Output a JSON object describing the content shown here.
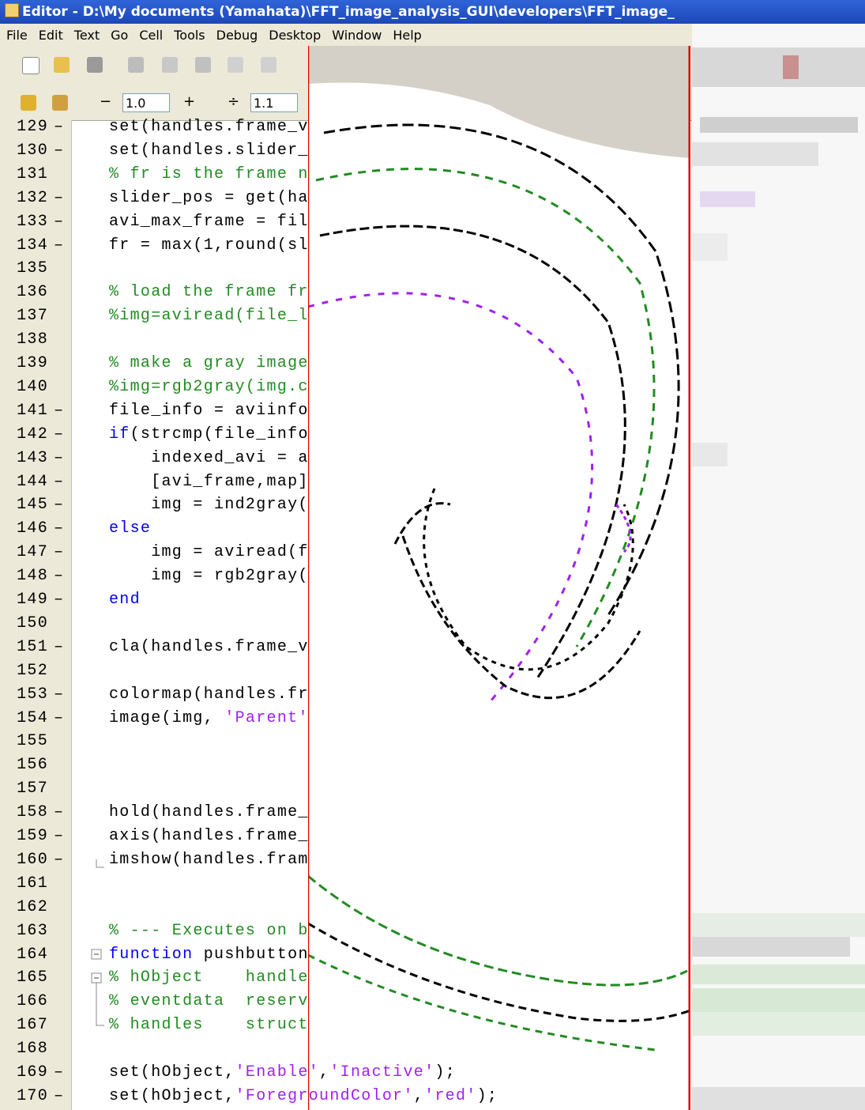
{
  "window": {
    "title": "Editor - D:\\My documents (Yamahata)\\FFT_image_analysis_GUI\\developers\\FFT_image_"
  },
  "menu": [
    "File",
    "Edit",
    "Text",
    "Go",
    "Cell",
    "Tools",
    "Debug",
    "Desktop",
    "Window",
    "Help"
  ],
  "toolbar": {
    "minus": "−",
    "zoom_value": "1.0",
    "plus": "+",
    "divide": "÷",
    "factor_value": "1.1"
  },
  "code": {
    "lines": [
      {
        "number": "129",
        "marker": "–",
        "segments": [
          {
            "text": "set(handles.frame_v",
            "color": "#000000"
          }
        ]
      },
      {
        "number": "130",
        "marker": "–",
        "segments": [
          {
            "text": "set(handles.slider_",
            "color": "#000000"
          }
        ]
      },
      {
        "number": "131",
        "segments": [
          {
            "text": "% fr is the frame n",
            "color": "#228b22"
          }
        ]
      },
      {
        "number": "132",
        "marker": "–",
        "segments": [
          {
            "text": "slider_pos = get(ha",
            "color": "#000000"
          }
        ]
      },
      {
        "number": "133",
        "marker": "–",
        "segments": [
          {
            "text": "avi_max_frame = fil",
            "color": "#000000"
          }
        ]
      },
      {
        "number": "134",
        "marker": "–",
        "segments": [
          {
            "text": "fr = max(1,round(sl",
            "color": "#000000"
          }
        ]
      },
      {
        "number": "135"
      },
      {
        "number": "136",
        "segments": [
          {
            "text": "% load the frame fr",
            "color": "#228b22"
          }
        ]
      },
      {
        "number": "137",
        "segments": [
          {
            "text": "%img=aviread(file_l",
            "color": "#228b22"
          }
        ]
      },
      {
        "number": "138"
      },
      {
        "number": "139",
        "segments": [
          {
            "text": "% make a gray image",
            "color": "#228b22"
          }
        ]
      },
      {
        "number": "140",
        "segments": [
          {
            "text": "%img=rgb2gray(img.c",
            "color": "#228b22"
          }
        ]
      },
      {
        "number": "141",
        "marker": "–",
        "segments": [
          {
            "text": "file_info = aviinfo",
            "color": "#000000"
          }
        ]
      },
      {
        "number": "142",
        "marker": "–",
        "segments": [
          {
            "text": "if",
            "color": "#0000ff"
          },
          {
            "text": "(strcmp(file_info",
            "color": "#000000"
          }
        ]
      },
      {
        "number": "143",
        "marker": "–",
        "segments": [
          {
            "text": "    indexed_avi = a",
            "color": "#000000"
          }
        ]
      },
      {
        "number": "144",
        "marker": "–",
        "segments": [
          {
            "text": "    [avi_frame,map]",
            "color": "#000000"
          }
        ]
      },
      {
        "number": "145",
        "marker": "–",
        "segments": [
          {
            "text": "    img = ind2gray(",
            "color": "#000000"
          }
        ]
      },
      {
        "number": "146",
        "marker": "–",
        "segments": [
          {
            "text": "else",
            "color": "#0000ff"
          }
        ]
      },
      {
        "number": "147",
        "marker": "–",
        "segments": [
          {
            "text": "    img = aviread(f",
            "color": "#000000"
          }
        ]
      },
      {
        "number": "148",
        "marker": "–",
        "segments": [
          {
            "text": "    img = rgb2gray(",
            "color": "#000000"
          }
        ]
      },
      {
        "number": "149",
        "marker": "–",
        "segments": [
          {
            "text": "end",
            "color": "#0000ff"
          }
        ]
      },
      {
        "number": "150"
      },
      {
        "number": "151",
        "marker": "–",
        "segments": [
          {
            "text": "cla(handles.frame_v",
            "color": "#000000"
          }
        ]
      },
      {
        "number": "152"
      },
      {
        "number": "153",
        "marker": "–",
        "segments": [
          {
            "text": "colormap(handles.fr",
            "color": "#000000"
          }
        ]
      },
      {
        "number": "154",
        "marker": "–",
        "segments": [
          {
            "text": "image(img, ",
            "color": "#000000"
          },
          {
            "text": "'Parent'",
            "color": "#a020f0"
          }
        ]
      },
      {
        "number": "155"
      },
      {
        "number": "156"
      },
      {
        "number": "157"
      },
      {
        "number": "158",
        "marker": "–",
        "segments": [
          {
            "text": "hold(handles.frame_",
            "color": "#000000"
          }
        ]
      },
      {
        "number": "159",
        "marker": "–",
        "segments": [
          {
            "text": "axis(handles.frame_",
            "color": "#000000"
          }
        ]
      },
      {
        "number": "160",
        "marker": "–",
        "segments": [
          {
            "text": "imshow(handles.fram",
            "color": "#000000"
          }
        ]
      },
      {
        "number": "161"
      },
      {
        "number": "162"
      },
      {
        "number": "163",
        "segments": [
          {
            "text": "% --- Executes on b",
            "color": "#228b22"
          }
        ]
      },
      {
        "number": "164",
        "segments": [
          {
            "text": "function",
            "color": "#0000ff"
          },
          {
            "text": " pushbutton",
            "color": "#000000"
          }
        ]
      },
      {
        "number": "165",
        "segments": [
          {
            "text": "% hObject    handle",
            "color": "#228b22"
          }
        ]
      },
      {
        "number": "166",
        "segments": [
          {
            "text": "% eventdata  reserv",
            "color": "#228b22"
          }
        ]
      },
      {
        "number": "167",
        "segments": [
          {
            "text": "% handles    struct",
            "color": "#228b22"
          }
        ]
      },
      {
        "number": "168"
      },
      {
        "number": "169",
        "marker": "–",
        "segments": [
          {
            "text": "set(hObject,",
            "color": "#000000"
          },
          {
            "text": "'Enable'",
            "color": "#a020f0"
          },
          {
            "text": ",",
            "color": "#000000"
          },
          {
            "text": "'Inactive'",
            "color": "#a020f0"
          },
          {
            "text": ");",
            "color": "#000000"
          }
        ]
      },
      {
        "number": "170",
        "marker": "–",
        "segments": [
          {
            "text": "set(hObject,",
            "color": "#000000"
          },
          {
            "text": "'ForegroundColor'",
            "color": "#a020f0"
          },
          {
            "text": ",",
            "color": "#000000"
          },
          {
            "text": "'red'",
            "color": "#a020f0"
          },
          {
            "text": ");",
            "color": "#000000"
          }
        ]
      }
    ]
  }
}
